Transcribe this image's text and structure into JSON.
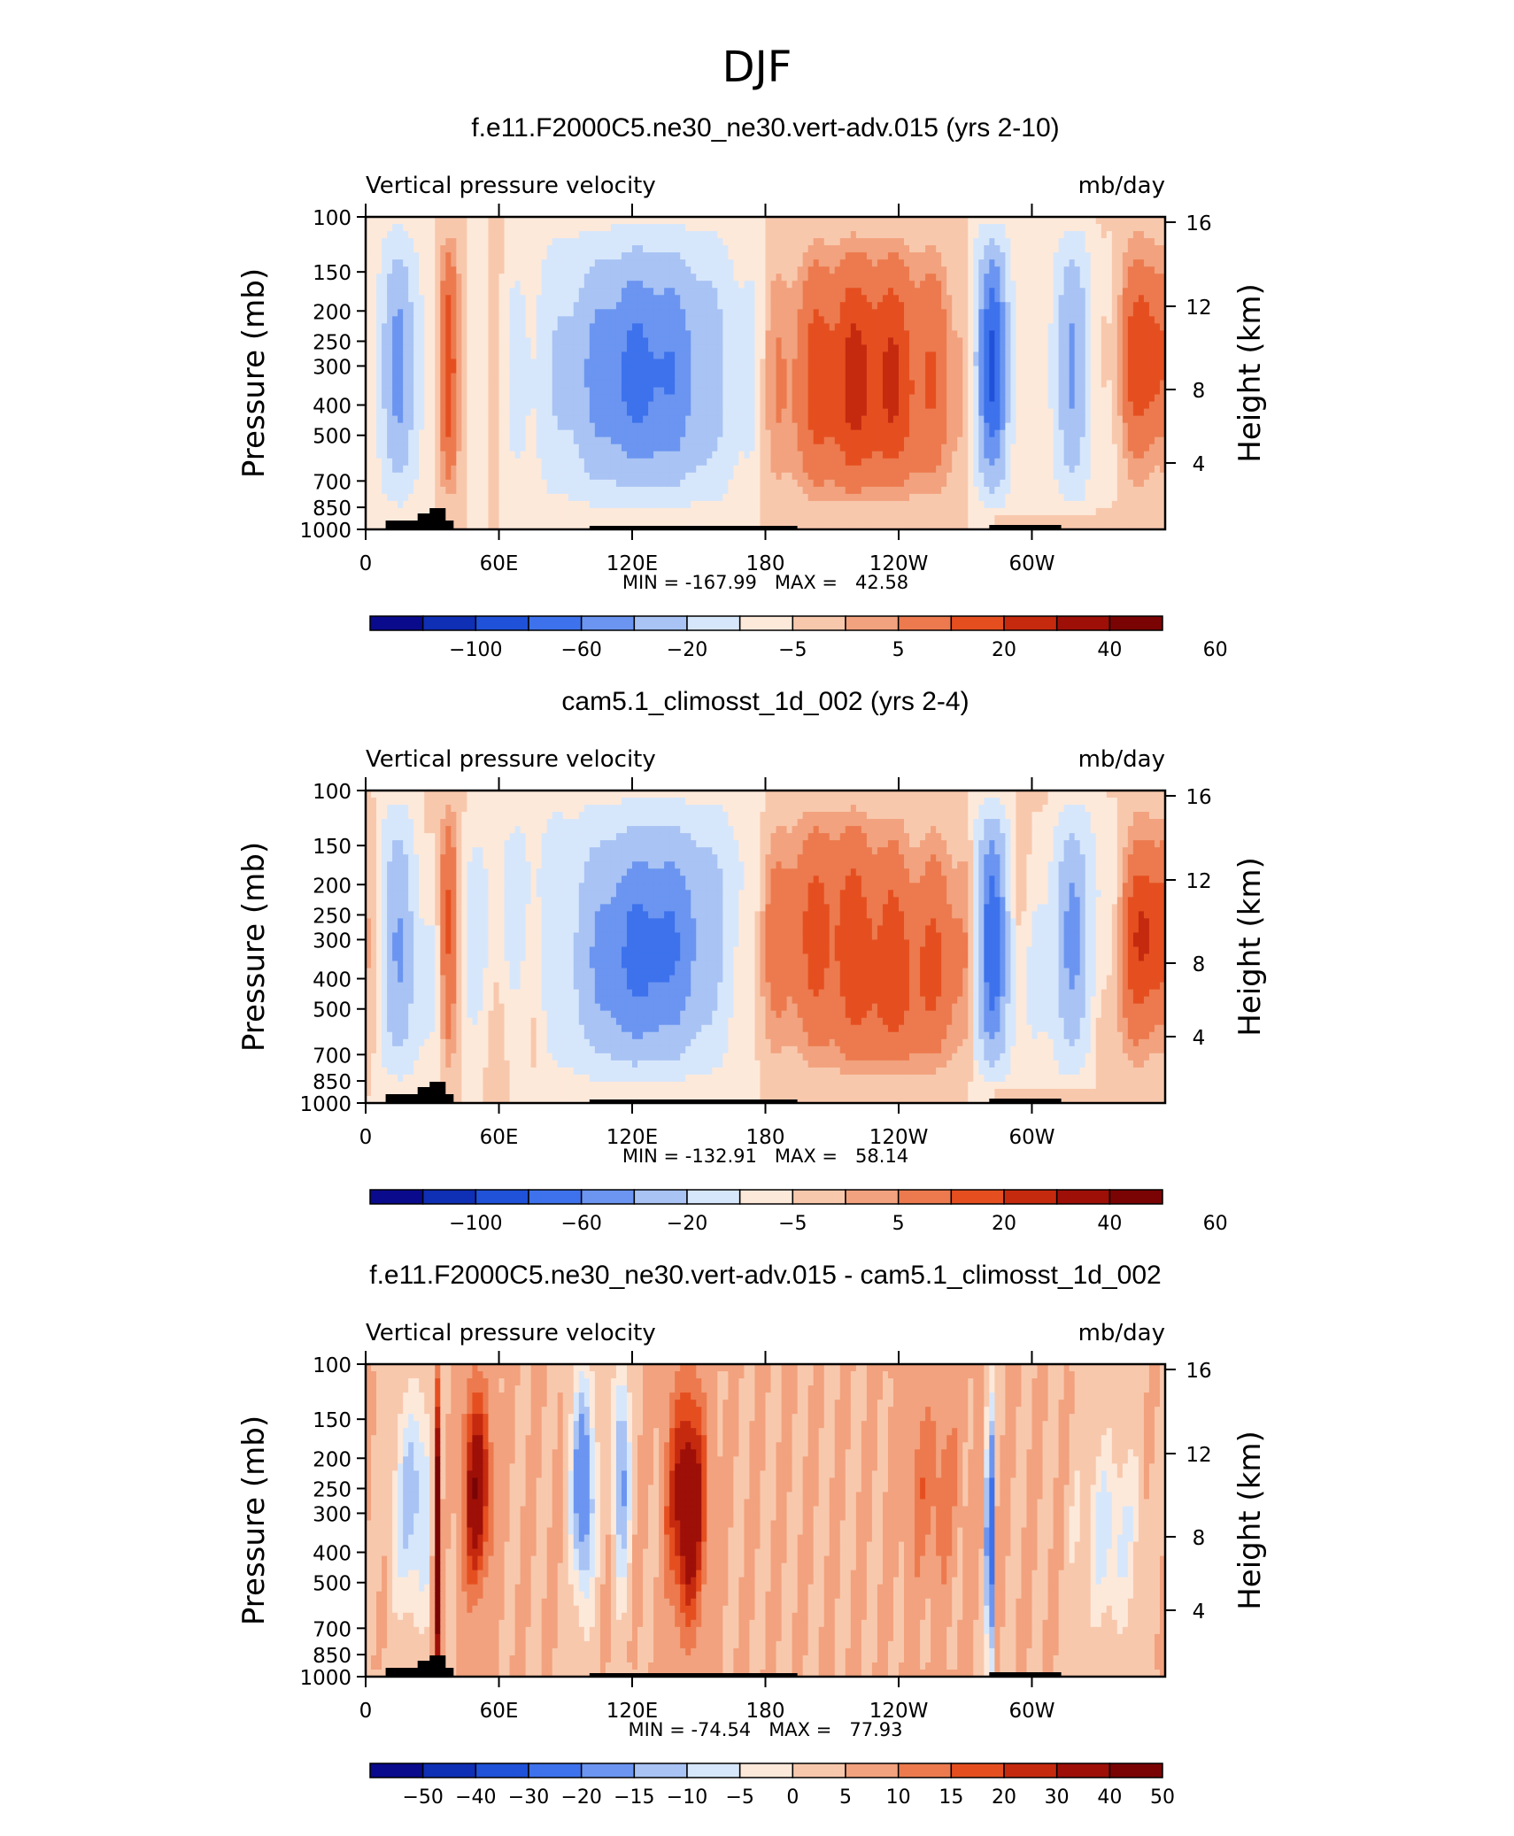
{
  "page_title": "DJF",
  "chart_data": [
    {
      "type": "heatmap",
      "title": "f.e11.F2000C5.ne30_ne30.vert-adv.015 (yrs 2-10)",
      "left_label": "Vertical pressure velocity",
      "right_label": "mb/day",
      "ylabel": "Pressure (mb)",
      "ylabel_right": "Height (km)",
      "y_ticks": [
        "100",
        "150",
        "200",
        "250",
        "300",
        "400",
        "500",
        "700",
        "850",
        "1000"
      ],
      "y_right_ticks": [
        "16",
        "12",
        "8",
        "4"
      ],
      "x_ticks": [
        "0",
        "60E",
        "120E",
        "180",
        "120W",
        "60W"
      ],
      "stats": "MIN = -167.99   MAX =   42.58",
      "min": -167.99,
      "max": 42.58,
      "colorbar_labels": [
        "-100",
        "-60",
        "-20",
        "-5",
        "5",
        "20",
        "40",
        "60"
      ]
    },
    {
      "type": "heatmap",
      "title": "cam5.1_climosst_1d_002 (yrs 2-4)",
      "left_label": "Vertical pressure velocity",
      "right_label": "mb/day",
      "ylabel": "Pressure (mb)",
      "ylabel_right": "Height (km)",
      "y_ticks": [
        "100",
        "150",
        "200",
        "250",
        "300",
        "400",
        "500",
        "700",
        "850",
        "1000"
      ],
      "y_right_ticks": [
        "16",
        "12",
        "8",
        "4"
      ],
      "x_ticks": [
        "0",
        "60E",
        "120E",
        "180",
        "120W",
        "60W"
      ],
      "stats": "MIN = -132.91   MAX =   58.14",
      "min": -132.91,
      "max": 58.14,
      "colorbar_labels": [
        "-100",
        "-60",
        "-20",
        "-5",
        "5",
        "20",
        "40",
        "60"
      ]
    },
    {
      "type": "heatmap",
      "title": "f.e11.F2000C5.ne30_ne30.vert-adv.015 - cam5.1_climosst_1d_002",
      "left_label": "Vertical pressure velocity",
      "right_label": "mb/day",
      "ylabel": "Pressure (mb)",
      "ylabel_right": "Height (km)",
      "y_ticks": [
        "100",
        "150",
        "200",
        "250",
        "300",
        "400",
        "500",
        "700",
        "850",
        "1000"
      ],
      "y_right_ticks": [
        "16",
        "12",
        "8",
        "4"
      ],
      "x_ticks": [
        "0",
        "60E",
        "120E",
        "180",
        "120W",
        "60W"
      ],
      "stats": "MIN = -74.54   MAX =   77.93",
      "min": -74.54,
      "max": 77.93,
      "colorbar_labels": [
        "-50",
        "-40",
        "-30",
        "-20",
        "-15",
        "-10",
        "-5",
        "0",
        "5",
        "10",
        "15",
        "20",
        "30",
        "40",
        "50"
      ]
    }
  ],
  "palette": [
    "#0a0a8c",
    "#0f2fb4",
    "#1f52d8",
    "#3d72ec",
    "#6b95f0",
    "#a8c3f4",
    "#d7e7fb",
    "#fde9da",
    "#f8c8ad",
    "#f2a27e",
    "#ec7a4e",
    "#e54f20",
    "#c52a0f",
    "#9e0f08",
    "#7a0404"
  ],
  "terrain_color": "#000000",
  "axis_color": "#000000"
}
